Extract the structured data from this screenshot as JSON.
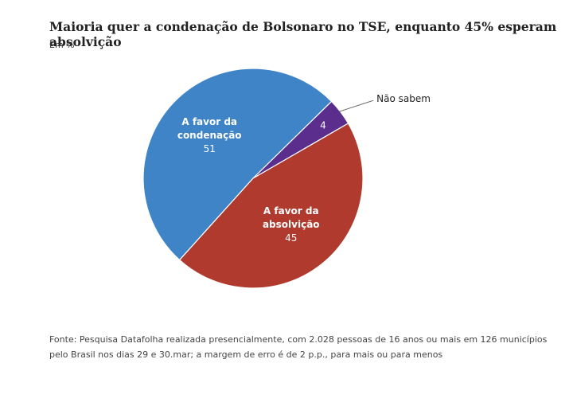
{
  "chart_data": {
    "type": "pie",
    "title": "Maioria quer a condenação de Bolsonaro no TSE, enquanto 45% esperam absolvição",
    "subtitle": "Em %",
    "categories": [
      "A favor da condenação",
      "Não sabem",
      "A favor da absolvição"
    ],
    "values": [
      51,
      4,
      45
    ],
    "colors": [
      "#3f84c6",
      "#5b2d8c",
      "#b03a2d"
    ],
    "source": "Fonte: Pesquisa Datafolha realizada presencialmente, com 2.028 pessoas de 16 anos ou mais em 126 municípios pelo Brasil nos dias 29 e 30.mar; a margem de erro é de 2 p.p., para mais ou para menos"
  }
}
